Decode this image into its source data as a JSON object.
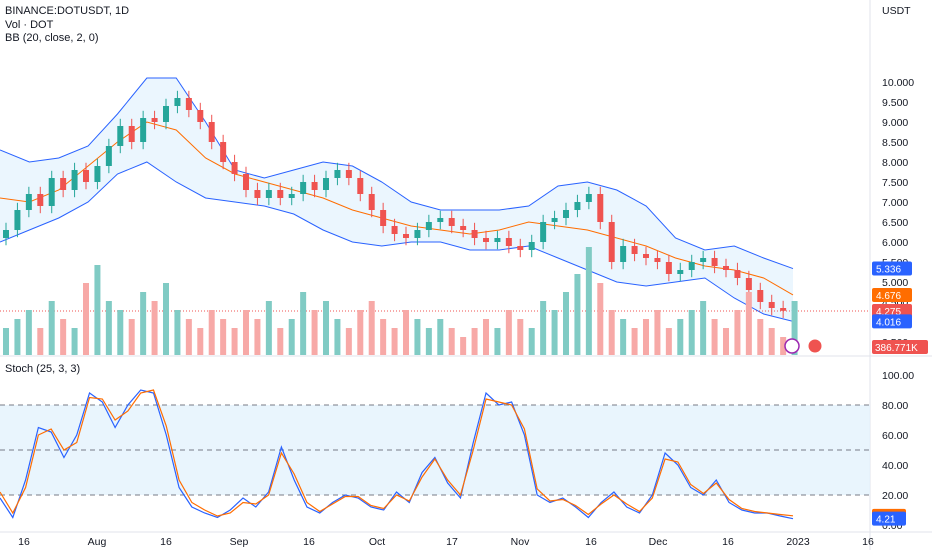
{
  "legend": {
    "symbol": "BINANCE:DOTUSDT, 1D",
    "volume": "Vol · DOT",
    "bb": "BB (20, close, 2, 0)",
    "stoch": "Stoch (25, 3, 3)"
  },
  "colors": {
    "up": "#26a69a",
    "down": "#ef5350",
    "vol_up": "#80cbc4",
    "vol_down": "#f7a9a7",
    "bb_band": "#2962ff",
    "bb_basis": "#ff6d00",
    "bb_fill": "#e3f2fd",
    "k_line": "#2962ff",
    "d_line": "#ff6d00",
    "stoch_fill": "#e3f2fd",
    "grid": "#f0f3fa",
    "axis_text": "#131722"
  },
  "chart_data": [
    {
      "type": "candlestick",
      "title": "BINANCE:DOTUSDT, 1D",
      "ylabel": "USDT",
      "ylim": [
        3.3,
        11.1
      ],
      "yticks": [
        "10.000",
        "9.500",
        "9.000",
        "8.500",
        "8.000",
        "7.500",
        "7.000",
        "6.500",
        "6.000",
        "5.500",
        "5.000",
        "4.500",
        "4.000",
        "3.500"
      ],
      "xticks": [
        "16",
        "Aug",
        "16",
        "Sep",
        "16",
        "Oct",
        "17",
        "Nov",
        "16",
        "Dec",
        "16",
        "2023",
        "16"
      ],
      "close_path": [
        6.3,
        6.8,
        7.2,
        6.9,
        7.6,
        7.3,
        7.8,
        7.5,
        7.9,
        8.4,
        8.9,
        8.5,
        9.1,
        9.0,
        9.4,
        9.6,
        9.3,
        9.0,
        8.5,
        8.0,
        7.7,
        7.3,
        7.1,
        7.3,
        7.1,
        7.2,
        7.5,
        7.3,
        7.6,
        7.8,
        7.6,
        7.2,
        6.8,
        6.4,
        6.2,
        6.1,
        6.3,
        6.5,
        6.6,
        6.4,
        6.3,
        6.1,
        6.0,
        6.1,
        5.9,
        5.8,
        6.0,
        6.5,
        6.6,
        6.8,
        7.0,
        7.2,
        6.5,
        5.5,
        5.9,
        5.7,
        5.6,
        5.5,
        5.2,
        5.3,
        5.5,
        5.6,
        5.4,
        5.3,
        5.1,
        4.8,
        4.5,
        4.35,
        4.28,
        4.3
      ],
      "bb_upper_path": [
        8.3,
        8.0,
        8.1,
        8.4,
        9.2,
        10.1,
        10.1,
        9.0,
        7.8,
        7.6,
        7.8,
        8.0,
        7.9,
        7.5,
        7.0,
        6.8,
        6.8,
        6.8,
        6.9,
        7.4,
        7.5,
        7.3,
        6.9,
        6.1,
        5.8,
        5.9,
        5.6,
        5.336
      ],
      "bb_basis_path": [
        7.1,
        7.0,
        7.3,
        7.9,
        8.5,
        9.0,
        8.8,
        8.1,
        7.7,
        7.5,
        7.3,
        7.1,
        6.8,
        6.6,
        6.4,
        6.3,
        6.2,
        6.3,
        6.5,
        6.4,
        6.3,
        6.1,
        5.9,
        5.6,
        5.4,
        5.3,
        5.1,
        4.676
      ],
      "bb_lower_path": [
        6.0,
        6.3,
        6.6,
        7.0,
        7.7,
        8.0,
        7.5,
        7.1,
        7.0,
        6.9,
        6.7,
        6.3,
        6.0,
        5.9,
        6.0,
        6.0,
        5.8,
        5.8,
        5.9,
        5.6,
        5.3,
        5.0,
        4.9,
        5.0,
        5.1,
        4.6,
        4.2,
        4.016
      ],
      "last_values": {
        "bb_upper": "5.336",
        "bb_basis": "4.676",
        "close": "4.275",
        "bb_lower": "4.016"
      }
    },
    {
      "type": "bar",
      "title": "Vol · DOT",
      "values_relative": [
        0.3,
        0.4,
        0.5,
        0.3,
        0.6,
        0.4,
        0.3,
        0.8,
        1.0,
        0.6,
        0.5,
        0.4,
        0.7,
        0.6,
        0.8,
        0.5,
        0.4,
        0.3,
        0.5,
        0.4,
        0.3,
        0.5,
        0.4,
        0.6,
        0.3,
        0.4,
        0.7,
        0.5,
        0.6,
        0.4,
        0.3,
        0.5,
        0.6,
        0.4,
        0.3,
        0.5,
        0.4,
        0.3,
        0.4,
        0.3,
        0.2,
        0.3,
        0.4,
        0.3,
        0.5,
        0.4,
        0.3,
        0.6,
        0.5,
        0.7,
        0.9,
        1.2,
        0.8,
        0.5,
        0.4,
        0.3,
        0.4,
        0.5,
        0.3,
        0.4,
        0.5,
        0.6,
        0.4,
        0.3,
        0.5,
        0.7,
        0.4,
        0.3,
        0.2,
        0.6
      ],
      "last_value": "386.771K"
    },
    {
      "type": "line",
      "title": "Stoch (25, 3, 3)",
      "ylim": [
        0,
        100
      ],
      "yticks": [
        "100.00",
        "80.00",
        "60.00",
        "40.00",
        "20.00",
        "0.00"
      ],
      "bands": [
        80,
        50,
        20
      ],
      "series": [
        {
          "values": [
            18,
            5,
            30,
            65,
            62,
            45,
            60,
            88,
            82,
            65,
            80,
            90,
            88,
            60,
            25,
            12,
            8,
            5,
            10,
            18,
            12,
            22,
            52,
            30,
            12,
            8,
            15,
            20,
            18,
            12,
            10,
            22,
            15,
            35,
            45,
            28,
            18,
            55,
            88,
            80,
            82,
            60,
            20,
            15,
            18,
            12,
            5,
            15,
            22,
            12,
            8,
            20,
            48,
            40,
            25,
            20,
            30,
            15,
            10,
            8,
            8,
            6,
            4.21
          ]
        },
        {
          "values": [
            22,
            8,
            25,
            60,
            64,
            50,
            55,
            85,
            84,
            70,
            76,
            88,
            90,
            66,
            30,
            15,
            10,
            6,
            8,
            15,
            14,
            20,
            48,
            34,
            15,
            9,
            14,
            19,
            19,
            13,
            11,
            20,
            16,
            32,
            44,
            30,
            20,
            50,
            84,
            82,
            80,
            64,
            24,
            16,
            17,
            13,
            7,
            14,
            20,
            14,
            9,
            18,
            44,
            42,
            27,
            21,
            28,
            17,
            11,
            9,
            8,
            7,
            6.12
          ]
        }
      ],
      "last_values": {
        "d": "6.12",
        "k": "4.21"
      }
    }
  ]
}
